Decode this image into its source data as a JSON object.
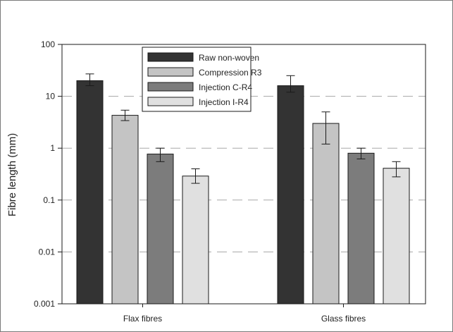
{
  "chart_data": {
    "type": "bar",
    "title": "",
    "xlabel": "",
    "ylabel": "Fibre length (mm)",
    "yscale": "log",
    "ylim": [
      0.001,
      100
    ],
    "yticks": [
      0.001,
      0.01,
      0.1,
      1,
      10,
      100
    ],
    "ytick_labels": [
      "0.001",
      "0.01",
      "0.1",
      "1",
      "10",
      "100"
    ],
    "grid": "dashed horizontal at major ticks",
    "legend_position": "top-center",
    "categories": [
      "Flax fibres",
      "Glass fibres"
    ],
    "series": [
      {
        "name": "Raw non-woven",
        "color": "#333333",
        "values": [
          20,
          16
        ],
        "err_low": [
          16,
          12
        ],
        "err_high": [
          27,
          25
        ]
      },
      {
        "name": "Compression R3",
        "color": "#c4c4c4",
        "values": [
          4.3,
          3.0
        ],
        "err_low": [
          3.4,
          1.2
        ],
        "err_high": [
          5.4,
          5.0
        ]
      },
      {
        "name": "Injection C-R4",
        "color": "#7c7c7c",
        "values": [
          0.77,
          0.8
        ],
        "err_low": [
          0.55,
          0.62
        ],
        "err_high": [
          1.0,
          1.0
        ]
      },
      {
        "name": "Injection I-R4",
        "color": "#e0e0e0",
        "values": [
          0.29,
          0.41
        ],
        "err_low": [
          0.21,
          0.28
        ],
        "err_high": [
          0.4,
          0.55
        ]
      }
    ]
  }
}
